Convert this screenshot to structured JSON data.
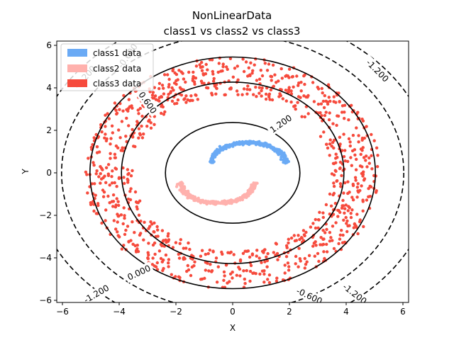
{
  "chart_data": {
    "type": "scatter",
    "title": "NonLinearData",
    "subtitle": "class1 vs  class2 vs  class3",
    "xlabel": "X",
    "ylabel": "Y",
    "xlim": [
      -6.2,
      6.2
    ],
    "ylim": [
      -6.1,
      6.2
    ],
    "xticks": [
      -6,
      -4,
      -2,
      0,
      2,
      4,
      6
    ],
    "yticks": [
      -6,
      -4,
      -2,
      0,
      2,
      4,
      6
    ],
    "xtick_labels": [
      "−6",
      "−4",
      "−2",
      "0",
      "2",
      "4",
      "6"
    ],
    "ytick_labels": [
      "−6",
      "−4",
      "−2",
      "0",
      "2",
      "4",
      "6"
    ],
    "grid": false,
    "legend_position": "top-left",
    "series": [
      {
        "name": "class1 data",
        "color": "#6aaaf5",
        "shape": "upper half-moon",
        "center": [
          0.55,
          0.45
        ],
        "radius": 1.3,
        "angle_range": [
          0,
          180
        ],
        "approx_points": 300
      },
      {
        "name": "class2 data",
        "color": "#ffb1ad",
        "shape": "lower half-moon",
        "center": [
          -0.55,
          -0.45
        ],
        "radius": 1.3,
        "angle_range": [
          180,
          360
        ],
        "approx_points": 300
      },
      {
        "name": "class3 data",
        "color": "#f64a3c",
        "shape": "annulus",
        "center": [
          0.0,
          0.0
        ],
        "radius_range": [
          3.5,
          5.2
        ],
        "approx_points": 1000
      }
    ],
    "contours": [
      {
        "level": 1.2,
        "label": "1.200",
        "style": "solid",
        "center": [
          0.0,
          0.0
        ],
        "rx": 2.37,
        "ry": 2.37
      },
      {
        "level": 0.6,
        "label": "0.600",
        "style": "solid",
        "center": [
          0.0,
          0.0
        ],
        "rx": 3.92,
        "ry": 4.27
      },
      {
        "level": 0.0,
        "label": "0.000",
        "style": "solid",
        "center": [
          0.0,
          0.0
        ],
        "rx": 5.03,
        "ry": 5.45
      },
      {
        "level": -0.6,
        "label": "-0.600",
        "style": "dashed",
        "center": [
          0.0,
          0.0
        ],
        "rx": 6.03,
        "ry": 6.5
      },
      {
        "level": -1.2,
        "label": "-1.200",
        "style": "dashed",
        "center": [
          0.0,
          0.0
        ],
        "rx": 7.05,
        "ry": 7.55
      }
    ],
    "contour_labels": [
      {
        "text": "1.200",
        "x": 1.7,
        "y": 2.3,
        "rotation": 35
      },
      {
        "text": "0.600",
        "x": -3.0,
        "y": 3.3,
        "rotation": -55
      },
      {
        "text": "0.000",
        "x": -3.3,
        "y": -4.7,
        "rotation": 25
      },
      {
        "text": "-0.600",
        "x": 2.7,
        "y": -5.8,
        "rotation": -25
      },
      {
        "text": "-1.200",
        "x": -4.8,
        "y": -5.7,
        "rotation": 30
      },
      {
        "text": "-1.200",
        "x": 4.3,
        "y": -5.7,
        "rotation": -38
      },
      {
        "text": "-1.200",
        "x": 5.1,
        "y": 4.8,
        "rotation": -45
      },
      {
        "text": "-0.600",
        "x": -3.7,
        "y": 5.5,
        "rotation": 55
      },
      {
        "text": "-1.200",
        "x": -5.2,
        "y": 4.5,
        "rotation": 48
      }
    ]
  }
}
